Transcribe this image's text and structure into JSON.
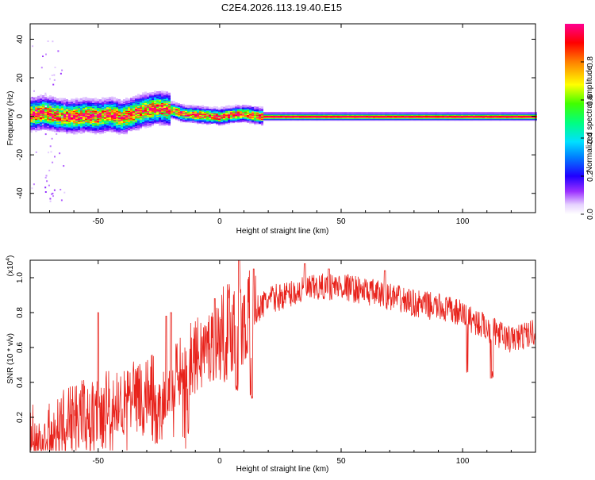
{
  "title": "C2E4.2026.113.19.40.E15",
  "chart_data": [
    {
      "type": "heatmap",
      "name": "spectrogram",
      "xlabel": "Height of straight line (km)",
      "ylabel": "Frequency (Hz)",
      "xlim": [
        -78,
        130
      ],
      "ylim": [
        -50,
        48
      ],
      "xticks": [
        -50,
        0,
        50,
        100
      ],
      "yticks": [
        -40,
        -20,
        0,
        20,
        40
      ],
      "ridge": [
        [
          -78,
          1.5
        ],
        [
          -72,
          2.5
        ],
        [
          -66,
          1.0
        ],
        [
          -60,
          0.5
        ],
        [
          -55,
          1.0
        ],
        [
          -50,
          0.5
        ],
        [
          -45,
          1.5
        ],
        [
          -40,
          0.0
        ],
        [
          -35,
          2.0
        ],
        [
          -30,
          4.0
        ],
        [
          -25,
          5.0
        ],
        [
          -20,
          4.0
        ],
        [
          -15,
          2.0
        ],
        [
          -10,
          1.5
        ],
        [
          -5,
          1.0
        ],
        [
          0,
          0.5
        ],
        [
          5,
          1.5
        ],
        [
          10,
          2.0
        ],
        [
          15,
          1.0
        ],
        [
          18,
          0.5
        ],
        [
          130,
          0.5
        ]
      ],
      "colorbar": {
        "label": "Normalized spectral amplitude",
        "range": [
          0,
          1
        ],
        "ticks": [
          "0.0",
          "0.2",
          "0.4",
          "0.6",
          "0.8"
        ]
      }
    },
    {
      "type": "line",
      "name": "snr",
      "xlabel": "Height of straight line (km)",
      "ylabel": "SNR (10 * v/v)",
      "scale_label": "(x10",
      "scale_exp": "4",
      "xlim": [
        -78,
        130
      ],
      "ylim": [
        0.0,
        1.1
      ],
      "xticks": [
        -50,
        0,
        50,
        100
      ],
      "yticks": [
        "0.2",
        "0.4",
        "0.6",
        "0.8",
        "1.0"
      ],
      "color": "#e8221b",
      "envelope": [
        [
          -78,
          0.08
        ],
        [
          -70,
          0.12
        ],
        [
          -60,
          0.2
        ],
        [
          -50,
          0.25
        ],
        [
          -40,
          0.3
        ],
        [
          -30,
          0.35
        ],
        [
          -20,
          0.42
        ],
        [
          -12,
          0.55
        ],
        [
          -5,
          0.62
        ],
        [
          0,
          0.68
        ],
        [
          5,
          0.75
        ],
        [
          10,
          0.78
        ],
        [
          15,
          0.82
        ],
        [
          20,
          0.88
        ],
        [
          30,
          0.92
        ],
        [
          40,
          0.95
        ],
        [
          50,
          0.96
        ],
        [
          60,
          0.93
        ],
        [
          70,
          0.9
        ],
        [
          80,
          0.86
        ],
        [
          90,
          0.84
        ],
        [
          100,
          0.8
        ],
        [
          110,
          0.72
        ],
        [
          120,
          0.65
        ],
        [
          130,
          0.7
        ]
      ],
      "dips": [
        [
          -40,
          0.1
        ],
        [
          -15,
          0.05
        ],
        [
          7,
          0.35
        ],
        [
          13,
          0.3
        ],
        [
          102,
          0.45
        ],
        [
          112,
          0.42
        ]
      ],
      "peaks": [
        [
          -50,
          0.8
        ],
        [
          -22,
          0.78
        ],
        [
          -20,
          0.8
        ],
        [
          -2,
          0.88
        ],
        [
          8,
          1.1
        ],
        [
          14,
          1.05
        ],
        [
          35,
          1.08
        ],
        [
          45,
          1.05
        ],
        [
          68,
          1.04
        ]
      ]
    }
  ]
}
